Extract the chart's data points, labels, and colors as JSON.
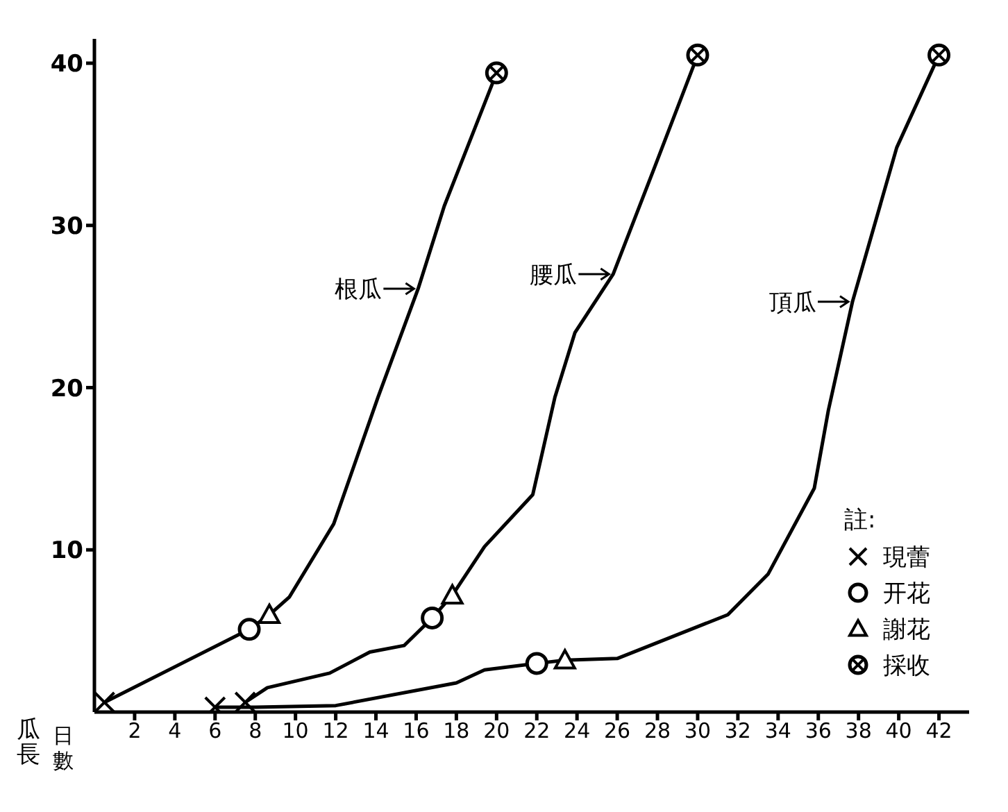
{
  "chart_data": {
    "type": "line",
    "xlabel": "日數",
    "ylabel": "瓜長",
    "legend_title": "註:",
    "xlim": [
      0,
      43.5
    ],
    "ylim": [
      0,
      41.5
    ],
    "xticks": [
      2,
      4,
      6,
      8,
      10,
      12,
      14,
      16,
      18,
      20,
      22,
      24,
      26,
      28,
      30,
      32,
      34,
      36,
      38,
      40,
      42
    ],
    "yticks": [
      10,
      20,
      30,
      40
    ],
    "grid": false,
    "legend": "bottom right",
    "line_style": "solid",
    "series": [
      {
        "name": "根瓜",
        "color": "#000000",
        "marker": "none",
        "x": [
          0.5,
          7.7,
          8.7,
          9.7,
          11.9,
          14.1,
          16.1,
          17.4,
          20
        ],
        "values": [
          0.6,
          5.1,
          6.0,
          7.1,
          11.6,
          19.4,
          26.1,
          31.2,
          39.4
        ]
      },
      {
        "name": "腰瓜",
        "color": "#000000",
        "marker": "none",
        "x": [
          7.5,
          8.6,
          11.7,
          13.7,
          15.4,
          16.8,
          17.8,
          19.4,
          21.8,
          22.9,
          23.9,
          25.8,
          27.8,
          30
        ],
        "values": [
          0.6,
          1.5,
          2.4,
          3.7,
          4.1,
          5.8,
          7.2,
          10.2,
          13.4,
          19.4,
          23.4,
          27,
          33.4,
          40.5
        ]
      },
      {
        "name": "頂瓜",
        "color": "#000000",
        "marker": "none",
        "x": [
          6,
          8,
          12,
          18,
          19.4,
          22,
          23.4,
          26,
          31.5,
          33.5,
          35.8,
          36.5,
          37.7,
          39.9,
          42
        ],
        "values": [
          0.3,
          0.3,
          0.4,
          1.8,
          2.6,
          3.0,
          3.2,
          3.3,
          6.0,
          8.5,
          13.8,
          18.6,
          25.3,
          34.8,
          40.5
        ]
      },
      {
        "name": "現蕾",
        "type": "scatter",
        "color": "#000000",
        "marker": "cross",
        "x": [
          0.5,
          6,
          7.5
        ],
        "values": [
          0.6,
          0.3,
          0.6
        ]
      },
      {
        "name": "开花",
        "type": "scatter",
        "color": "#000000",
        "marker": "circle",
        "x": [
          7.7,
          16.8,
          22
        ],
        "values": [
          5.1,
          5.8,
          3.0
        ]
      },
      {
        "name": "謝花",
        "type": "scatter",
        "color": "#000000",
        "marker": "triangle",
        "x": [
          8.7,
          17.8,
          23.4
        ],
        "values": [
          6.0,
          7.2,
          3.2
        ]
      },
      {
        "name": "採收",
        "type": "scatter",
        "color": "#000000",
        "marker": "circle-cross",
        "x": [
          20,
          30,
          42
        ],
        "values": [
          39.4,
          40.5,
          40.5
        ]
      }
    ]
  }
}
